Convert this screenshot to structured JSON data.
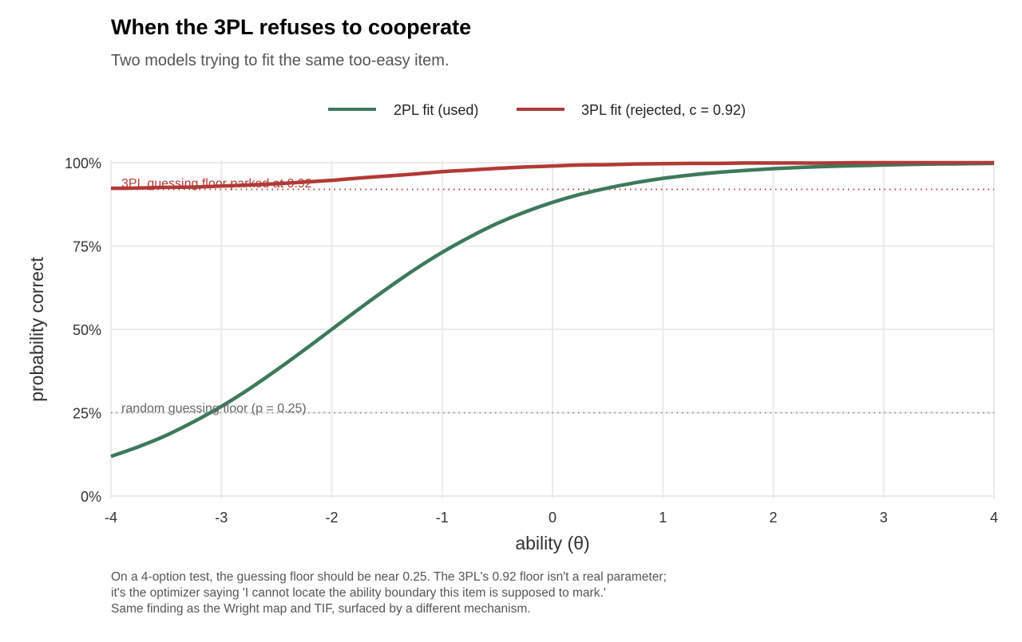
{
  "chart_data": {
    "type": "line",
    "title": "When the 3PL refuses to cooperate",
    "subtitle": "Two models trying to fit the same too-easy item.",
    "xlabel": "ability (θ)",
    "ylabel": "probability correct",
    "xlim": [
      -4,
      4
    ],
    "ylim": [
      0,
      1
    ],
    "x_ticks": [
      "-4",
      "-3",
      "-2",
      "-1",
      "0",
      "1",
      "2",
      "3",
      "4"
    ],
    "x_tick_values": [
      -4,
      -3,
      -2,
      -1,
      0,
      1,
      2,
      3,
      4
    ],
    "y_ticks": [
      "0%",
      "25%",
      "50%",
      "75%",
      "100%"
    ],
    "y_tick_values": [
      0,
      0.25,
      0.5,
      0.75,
      1
    ],
    "grid": true,
    "legend_position": "top",
    "x": [
      -4,
      -3.75,
      -3.5,
      -3.25,
      -3,
      -2.75,
      -2.5,
      -2.25,
      -2,
      -1.75,
      -1.5,
      -1.25,
      -1,
      -0.75,
      -0.5,
      -0.25,
      0,
      0.25,
      0.5,
      0.75,
      1,
      1.25,
      1.5,
      1.75,
      2,
      2.25,
      2.5,
      2.75,
      3,
      3.25,
      3.5,
      3.75,
      4
    ],
    "series": [
      {
        "name": "2PL fit (used)",
        "color": "#3b7a5b",
        "values": [
          0.119,
          0.148,
          0.182,
          0.223,
          0.269,
          0.321,
          0.378,
          0.438,
          0.5,
          0.562,
          0.622,
          0.679,
          0.731,
          0.777,
          0.818,
          0.852,
          0.881,
          0.905,
          0.924,
          0.94,
          0.953,
          0.963,
          0.971,
          0.977,
          0.982,
          0.986,
          0.989,
          0.991,
          0.993,
          0.995,
          0.996,
          0.997,
          0.998
        ]
      },
      {
        "name": "3PL fit (rejected, c = 0.92)",
        "color": "#b23a36",
        "values": [
          0.923,
          0.924,
          0.926,
          0.927,
          0.93,
          0.933,
          0.937,
          0.942,
          0.947,
          0.954,
          0.96,
          0.966,
          0.973,
          0.978,
          0.983,
          0.987,
          0.99,
          0.993,
          0.994,
          0.996,
          0.997,
          0.998,
          0.998,
          0.999,
          0.999,
          0.999,
          0.999,
          1.0,
          1.0,
          1.0,
          1.0,
          1.0,
          1.0
        ]
      }
    ],
    "reference_lines": [
      {
        "y": 0.92,
        "label": "3PL guessing floor parked at 0.92",
        "color": "#b23a36"
      },
      {
        "y": 0.25,
        "label": "random guessing floor (p = 0.25)",
        "color": "#888888"
      }
    ],
    "caption": [
      "On a 4-option test, the guessing floor should be near 0.25. The 3PL's 0.92 floor isn't a real parameter;",
      "it's the optimizer saying 'I cannot locate the ability boundary this item is supposed to mark.'",
      "Same finding as the Wright map and TIF, surfaced by a different mechanism."
    ]
  }
}
